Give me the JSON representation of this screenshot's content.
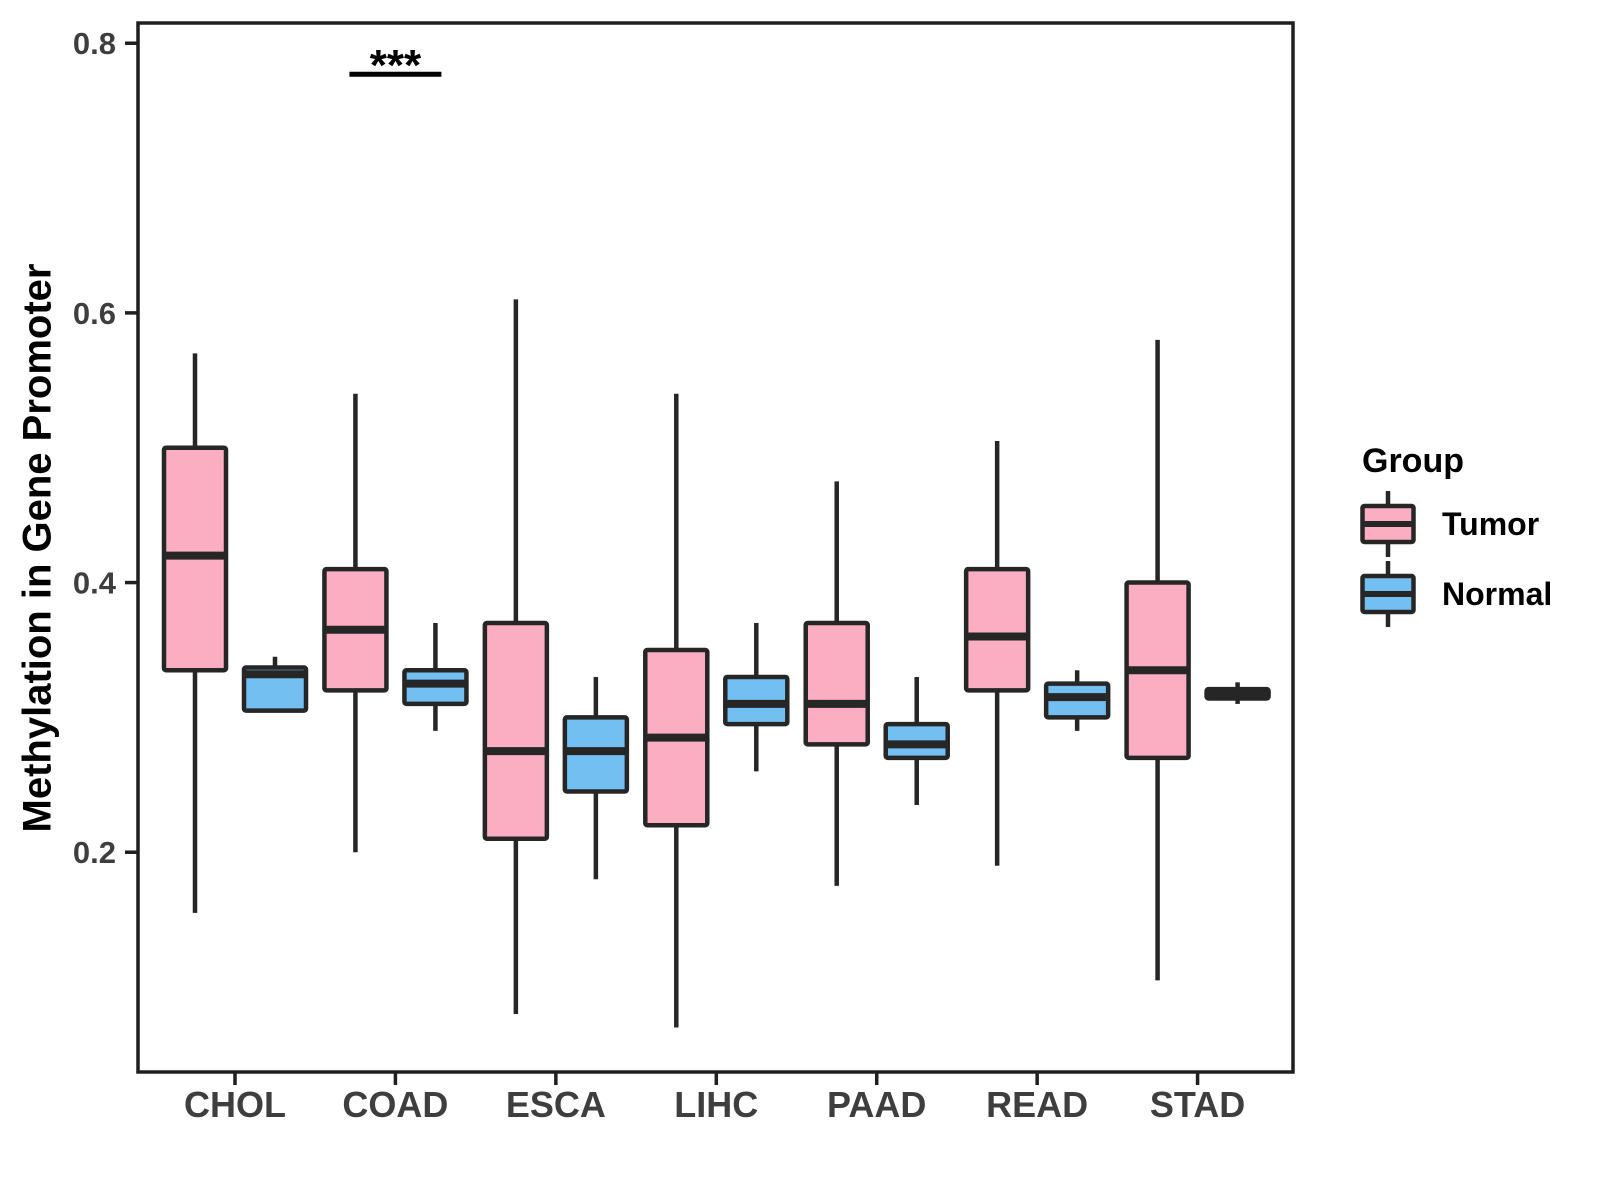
{
  "chart_data": {
    "type": "boxplot",
    "title": "",
    "xlabel": "",
    "ylabel": "Methylation in Gene Promoter",
    "categories": [
      "CHOL",
      "COAD",
      "ESCA",
      "LIHC",
      "PAAD",
      "READ",
      "STAD"
    ],
    "y_ticks": [
      0.8,
      0.6,
      0.4,
      0.2
    ],
    "ylim": [
      0.037,
      0.815
    ],
    "grid": "off",
    "legend": {
      "title": "Group",
      "position": "right"
    },
    "colors": {
      "tumor_fill": "#FBAEC1",
      "normal_fill": "#73BFF1",
      "box_outline": "#262626",
      "axis_line": "#1f1f1f",
      "axis_text": "#3e3e3e"
    },
    "groups": [
      {
        "name": "Tumor",
        "color": "#FBAEC1"
      },
      {
        "name": "Normal",
        "color": "#73BFF1"
      }
    ],
    "series": [
      {
        "name": "Tumor",
        "boxes": [
          {
            "category": "CHOL",
            "min": 0.155,
            "q1": 0.335,
            "median": 0.42,
            "q3": 0.5,
            "max": 0.57
          },
          {
            "category": "COAD",
            "min": 0.2,
            "q1": 0.32,
            "median": 0.365,
            "q3": 0.41,
            "max": 0.54
          },
          {
            "category": "ESCA",
            "min": 0.08,
            "q1": 0.21,
            "median": 0.275,
            "q3": 0.37,
            "max": 0.61
          },
          {
            "category": "LIHC",
            "min": 0.07,
            "q1": 0.22,
            "median": 0.285,
            "q3": 0.35,
            "max": 0.54
          },
          {
            "category": "PAAD",
            "min": 0.175,
            "q1": 0.28,
            "median": 0.31,
            "q3": 0.37,
            "max": 0.475
          },
          {
            "category": "READ",
            "min": 0.19,
            "q1": 0.32,
            "median": 0.36,
            "q3": 0.41,
            "max": 0.505
          },
          {
            "category": "STAD",
            "min": 0.105,
            "q1": 0.27,
            "median": 0.335,
            "q3": 0.4,
            "max": 0.58
          }
        ]
      },
      {
        "name": "Normal",
        "boxes": [
          {
            "category": "CHOL",
            "min": 0.305,
            "q1": 0.305,
            "median": 0.332,
            "q3": 0.337,
            "max": 0.345
          },
          {
            "category": "COAD",
            "min": 0.29,
            "q1": 0.31,
            "median": 0.325,
            "q3": 0.335,
            "max": 0.37
          },
          {
            "category": "ESCA",
            "min": 0.18,
            "q1": 0.245,
            "median": 0.275,
            "q3": 0.3,
            "max": 0.33
          },
          {
            "category": "LIHC",
            "min": 0.26,
            "q1": 0.295,
            "median": 0.31,
            "q3": 0.33,
            "max": 0.37
          },
          {
            "category": "PAAD",
            "min": 0.235,
            "q1": 0.27,
            "median": 0.28,
            "q3": 0.295,
            "max": 0.33
          },
          {
            "category": "READ",
            "min": 0.29,
            "q1": 0.3,
            "median": 0.315,
            "q3": 0.325,
            "max": 0.335
          },
          {
            "category": "STAD",
            "min": 0.31,
            "q1": 0.314,
            "median": 0.318,
            "q3": 0.321,
            "max": 0.326
          }
        ]
      }
    ],
    "annotations": [
      {
        "type": "significance",
        "label": "***",
        "category": "COAD",
        "between": [
          "Tumor",
          "Normal"
        ],
        "bar_y": 0.777
      }
    ]
  }
}
